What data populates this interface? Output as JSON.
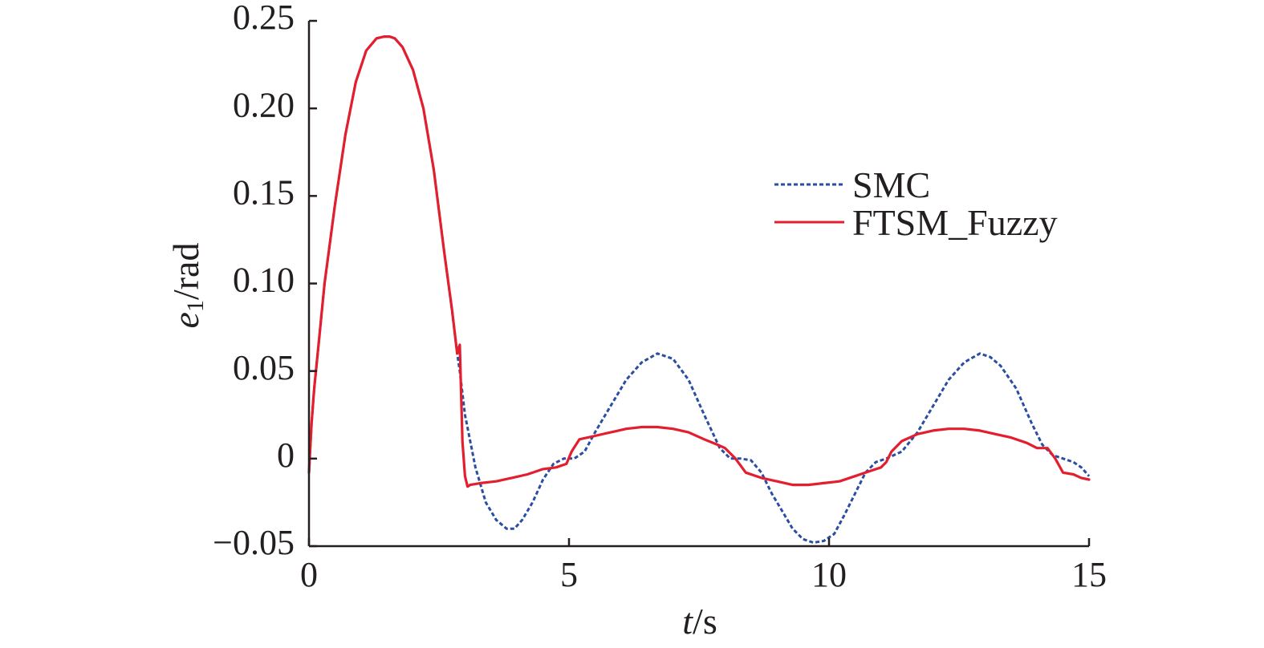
{
  "chart_data": {
    "type": "line",
    "xlabel": {
      "var": "t",
      "unit": "/s"
    },
    "ylabel": {
      "var": "e",
      "sub": "1",
      "unit": "/rad"
    },
    "xlim": [
      0,
      15
    ],
    "ylim": [
      -0.05,
      0.25
    ],
    "xticks": [
      0,
      5,
      10,
      15
    ],
    "xtick_labels": [
      "0",
      "5",
      "10",
      "15"
    ],
    "yticks": [
      -0.05,
      0,
      0.05,
      0.1,
      0.15,
      0.2,
      0.25
    ],
    "ytick_labels": [
      "−0.05",
      "0",
      "0.05",
      "0.10",
      "0.15",
      "0.20",
      "0.25"
    ],
    "grid": false,
    "legend_position": "right",
    "series": [
      {
        "name": "SMC",
        "color": "#2b4ea2",
        "style": "dotted",
        "x": [
          0,
          0.05,
          0.1,
          0.2,
          0.3,
          0.5,
          0.7,
          0.9,
          1.1,
          1.3,
          1.45,
          1.55,
          1.65,
          1.8,
          2.0,
          2.2,
          2.4,
          2.6,
          2.75,
          2.85,
          2.9,
          3.0,
          3.2,
          3.4,
          3.6,
          3.8,
          3.95,
          4.1,
          4.3,
          4.5,
          4.7,
          4.9,
          5.1,
          5.3,
          5.5,
          5.8,
          6.1,
          6.4,
          6.7,
          7.0,
          7.3,
          7.6,
          7.9,
          8.1,
          8.3,
          8.5,
          8.7,
          8.9,
          9.1,
          9.3,
          9.5,
          9.7,
          9.9,
          10.1,
          10.3,
          10.5,
          10.7,
          10.9,
          11.1,
          11.4,
          11.7,
          12.0,
          12.3,
          12.6,
          12.9,
          13.1,
          13.3,
          13.6,
          13.9,
          14.1,
          14.3,
          14.5,
          14.7,
          14.85,
          15.0
        ],
        "values": [
          -0.008,
          0.02,
          0.04,
          0.07,
          0.1,
          0.145,
          0.185,
          0.215,
          0.233,
          0.24,
          0.241,
          0.241,
          0.24,
          0.235,
          0.222,
          0.2,
          0.165,
          0.118,
          0.085,
          0.06,
          0.05,
          0.025,
          -0.005,
          -0.025,
          -0.035,
          -0.04,
          -0.04,
          -0.035,
          -0.025,
          -0.012,
          -0.003,
          0.0,
          0.0,
          0.004,
          0.015,
          0.03,
          0.045,
          0.055,
          0.06,
          0.057,
          0.045,
          0.025,
          0.006,
          0.0,
          0.0,
          -0.001,
          -0.008,
          -0.02,
          -0.03,
          -0.04,
          -0.046,
          -0.048,
          -0.047,
          -0.043,
          -0.032,
          -0.02,
          -0.008,
          -0.002,
          0.0,
          0.004,
          0.015,
          0.03,
          0.045,
          0.055,
          0.06,
          0.058,
          0.053,
          0.04,
          0.02,
          0.008,
          0.002,
          0.0,
          -0.002,
          -0.005,
          -0.01
        ]
      },
      {
        "name": "FTSM_Fuzzy",
        "color": "#e31e2e",
        "style": "solid",
        "x": [
          0,
          0.05,
          0.1,
          0.2,
          0.3,
          0.5,
          0.7,
          0.9,
          1.1,
          1.3,
          1.45,
          1.55,
          1.65,
          1.8,
          2.0,
          2.2,
          2.4,
          2.6,
          2.75,
          2.85,
          2.9,
          2.95,
          3.0,
          3.05,
          3.1,
          3.3,
          3.6,
          3.9,
          4.2,
          4.5,
          4.75,
          4.95,
          5.05,
          5.2,
          5.5,
          5.8,
          6.1,
          6.4,
          6.7,
          7.0,
          7.3,
          7.6,
          7.85,
          8.0,
          8.2,
          8.4,
          8.7,
          9.0,
          9.3,
          9.6,
          9.9,
          10.2,
          10.5,
          10.8,
          11.0,
          11.1,
          11.2,
          11.4,
          11.7,
          12.0,
          12.3,
          12.6,
          12.9,
          13.2,
          13.5,
          13.8,
          14.0,
          14.2,
          14.35,
          14.5,
          14.7,
          14.85,
          15.0
        ],
        "values": [
          -0.008,
          0.02,
          0.04,
          0.07,
          0.1,
          0.145,
          0.185,
          0.215,
          0.233,
          0.24,
          0.241,
          0.241,
          0.24,
          0.235,
          0.222,
          0.2,
          0.165,
          0.118,
          0.085,
          0.06,
          0.065,
          0.01,
          -0.01,
          -0.016,
          -0.015,
          -0.014,
          -0.013,
          -0.011,
          -0.009,
          -0.006,
          -0.005,
          -0.003,
          0.004,
          0.011,
          0.013,
          0.015,
          0.017,
          0.018,
          0.018,
          0.017,
          0.015,
          0.011,
          0.008,
          0.006,
          0.0,
          -0.008,
          -0.011,
          -0.013,
          -0.015,
          -0.015,
          -0.014,
          -0.013,
          -0.01,
          -0.007,
          -0.005,
          -0.002,
          0.004,
          0.01,
          0.014,
          0.016,
          0.017,
          0.017,
          0.016,
          0.014,
          0.012,
          0.009,
          0.006,
          0.006,
          0.0,
          -0.008,
          -0.009,
          -0.011,
          -0.012
        ]
      }
    ]
  }
}
